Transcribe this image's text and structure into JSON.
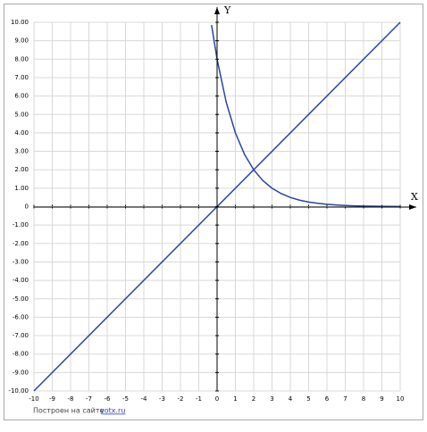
{
  "chart_data": {
    "type": "line",
    "x_label": "X",
    "y_label": "Y",
    "xlim": [
      -10,
      10
    ],
    "ylim": [
      -10,
      10
    ],
    "xticks": [
      -10,
      -9,
      -8,
      -7,
      -6,
      -5,
      -4,
      -3,
      -2,
      -1,
      0,
      1,
      2,
      3,
      4,
      5,
      6,
      7,
      8,
      9,
      10
    ],
    "yticks": [
      {
        "value": 10,
        "label": "10.00"
      },
      {
        "value": 9,
        "label": "9.00"
      },
      {
        "value": 8,
        "label": "8.00"
      },
      {
        "value": 7,
        "label": "7.00"
      },
      {
        "value": 6,
        "label": "6.00"
      },
      {
        "value": 5,
        "label": "5.00"
      },
      {
        "value": 4,
        "label": "4.00"
      },
      {
        "value": 3,
        "label": "3.00"
      },
      {
        "value": 2,
        "label": "2.00"
      },
      {
        "value": 1,
        "label": "1.00"
      },
      0,
      {
        "value": -1,
        "label": "-1.00"
      },
      {
        "value": -2,
        "label": "-2.00"
      },
      {
        "value": -3,
        "label": "-3.00"
      },
      {
        "value": -4,
        "label": "-4.00"
      },
      {
        "value": -5,
        "label": "-5.00"
      },
      {
        "value": -6,
        "label": "-6.00"
      },
      {
        "value": -7,
        "label": "-7.00"
      },
      {
        "value": -8,
        "label": "-8.00"
      },
      {
        "value": -9,
        "label": "-9.00"
      },
      {
        "value": -10,
        "label": "-10.00"
      }
    ],
    "grid": true,
    "series": [
      {
        "color": "#2a45a0",
        "x": [
          -10,
          10
        ],
        "values": [
          -10,
          10
        ]
      },
      {
        "color": "#2a45a0",
        "x": [
          -0.3,
          0,
          0.5,
          1,
          1.5,
          2,
          2.5,
          3,
          3.5,
          4,
          4.5,
          5,
          5.5,
          6,
          6.5,
          7,
          7.5,
          8,
          8.5,
          9,
          9.5,
          10
        ],
        "values": [
          9.85,
          8,
          5.66,
          4,
          2.83,
          2,
          1.41,
          1,
          0.71,
          0.5,
          0.35,
          0.25,
          0.18,
          0.125,
          0.09,
          0.0625,
          0.044,
          0.031,
          0.022,
          0.016,
          0.011,
          0.008
        ]
      }
    ],
    "footer": "Построен на сайте",
    "footer_link": "yotx.ru"
  }
}
